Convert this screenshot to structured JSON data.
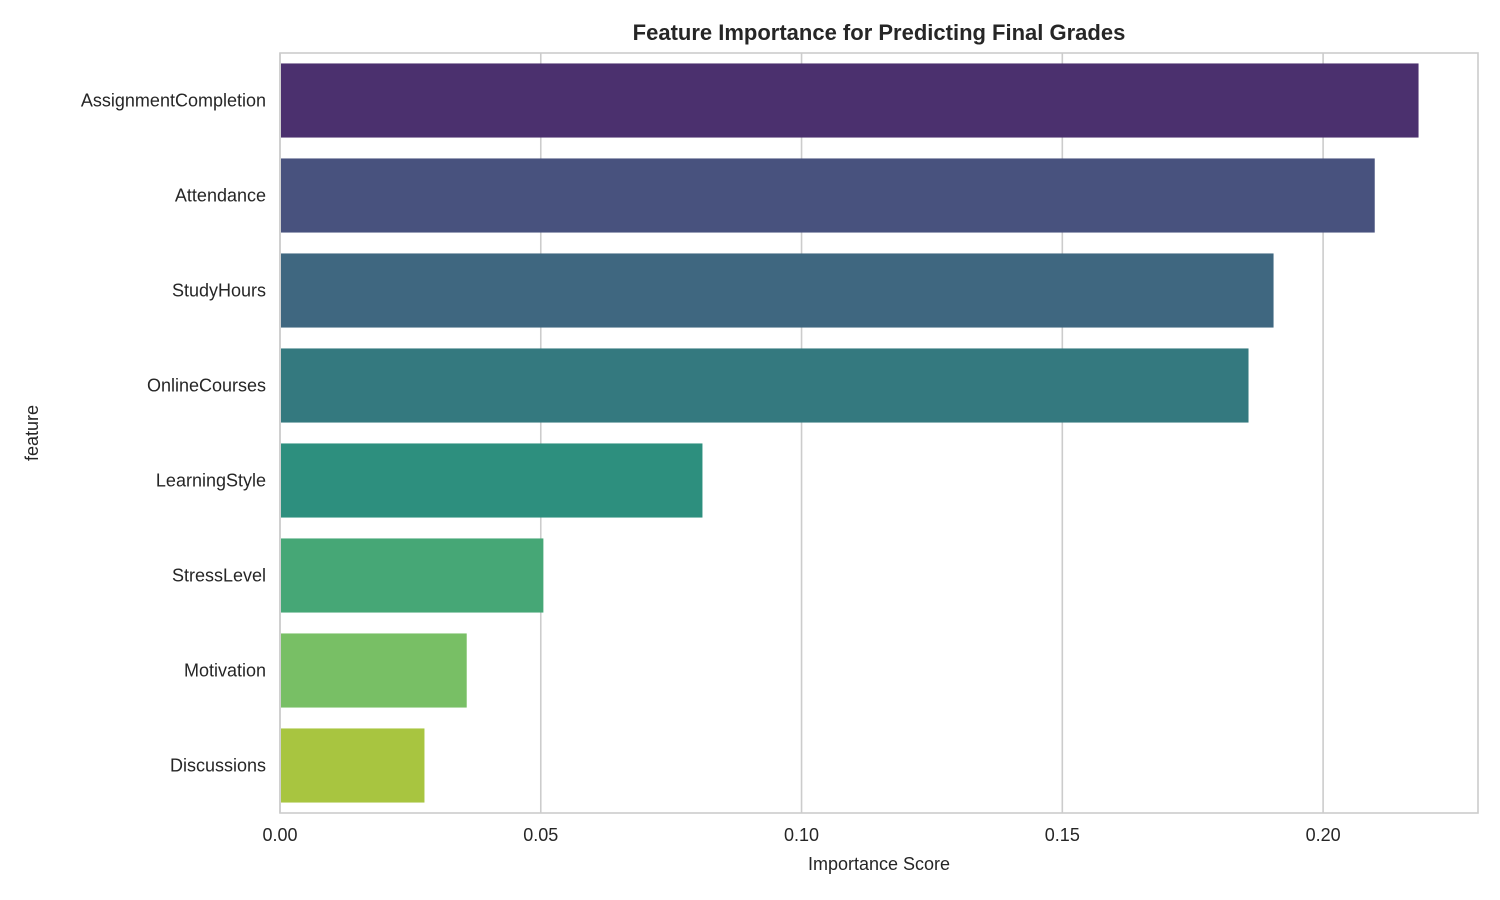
{
  "chart_data": {
    "type": "bar",
    "orientation": "horizontal",
    "title": "Feature Importance for Predicting Final Grades",
    "xlabel": "Importance Score",
    "ylabel": "feature",
    "categories": [
      "AssignmentCompletion",
      "Attendance",
      "StudyHours",
      "OnlineCourses",
      "LearningStyle",
      "StressLevel",
      "Motivation",
      "Discussions"
    ],
    "values": [
      0.2183,
      0.2099,
      0.1905,
      0.1857,
      0.081,
      0.0505,
      0.0358,
      0.0277
    ],
    "colors": [
      "#4b306e",
      "#48527e",
      "#3f6780",
      "#34797f",
      "#2d8f7e",
      "#46a776",
      "#78bf65",
      "#a8c540"
    ],
    "xlim": [
      0,
      0.2297
    ],
    "xticks": [
      "0.00",
      "0.05",
      "0.10",
      "0.15",
      "0.20"
    ],
    "grid": "vertical",
    "legend": "none"
  }
}
